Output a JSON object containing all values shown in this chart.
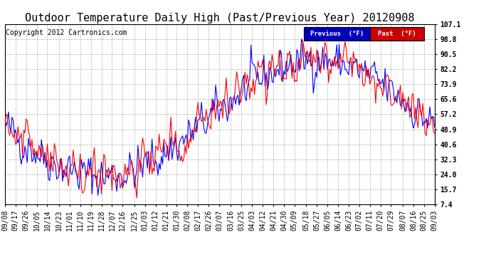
{
  "title": "Outdoor Temperature Daily High (Past/Previous Year) 20120908",
  "copyright": "Copyright 2012 Cartronics.com",
  "legend_prev_label": "Previous  (°F)",
  "legend_past_label": "Past  (°F)",
  "legend_prev_color": "#0000ff",
  "legend_past_color": "#ff0000",
  "legend_prev_bg": "#0000bb",
  "legend_past_bg": "#cc0000",
  "bg_color": "#ffffff",
  "plot_bg_color": "#ffffff",
  "grid_color": "#999999",
  "line_width": 0.8,
  "y_ticks": [
    7.4,
    15.7,
    24.0,
    32.3,
    40.6,
    48.9,
    57.2,
    65.6,
    73.9,
    82.2,
    90.5,
    98.8,
    107.1
  ],
  "y_min": 7.4,
  "y_max": 107.1,
  "title_fontsize": 11,
  "axis_fontsize": 7,
  "copyright_fontsize": 7,
  "x_tick_labels": [
    "09/08",
    "09/17",
    "09/26",
    "10/05",
    "10/14",
    "10/23",
    "11/01",
    "11/10",
    "11/19",
    "11/28",
    "12/07",
    "12/16",
    "12/25",
    "01/03",
    "01/12",
    "01/21",
    "01/30",
    "02/08",
    "02/17",
    "02/26",
    "03/07",
    "03/16",
    "03/25",
    "04/03",
    "04/12",
    "04/21",
    "04/30",
    "05/09",
    "05/18",
    "05/27",
    "06/05",
    "06/14",
    "06/23",
    "07/02",
    "07/11",
    "07/20",
    "07/29",
    "08/07",
    "08/16",
    "08/25",
    "09/03"
  ]
}
